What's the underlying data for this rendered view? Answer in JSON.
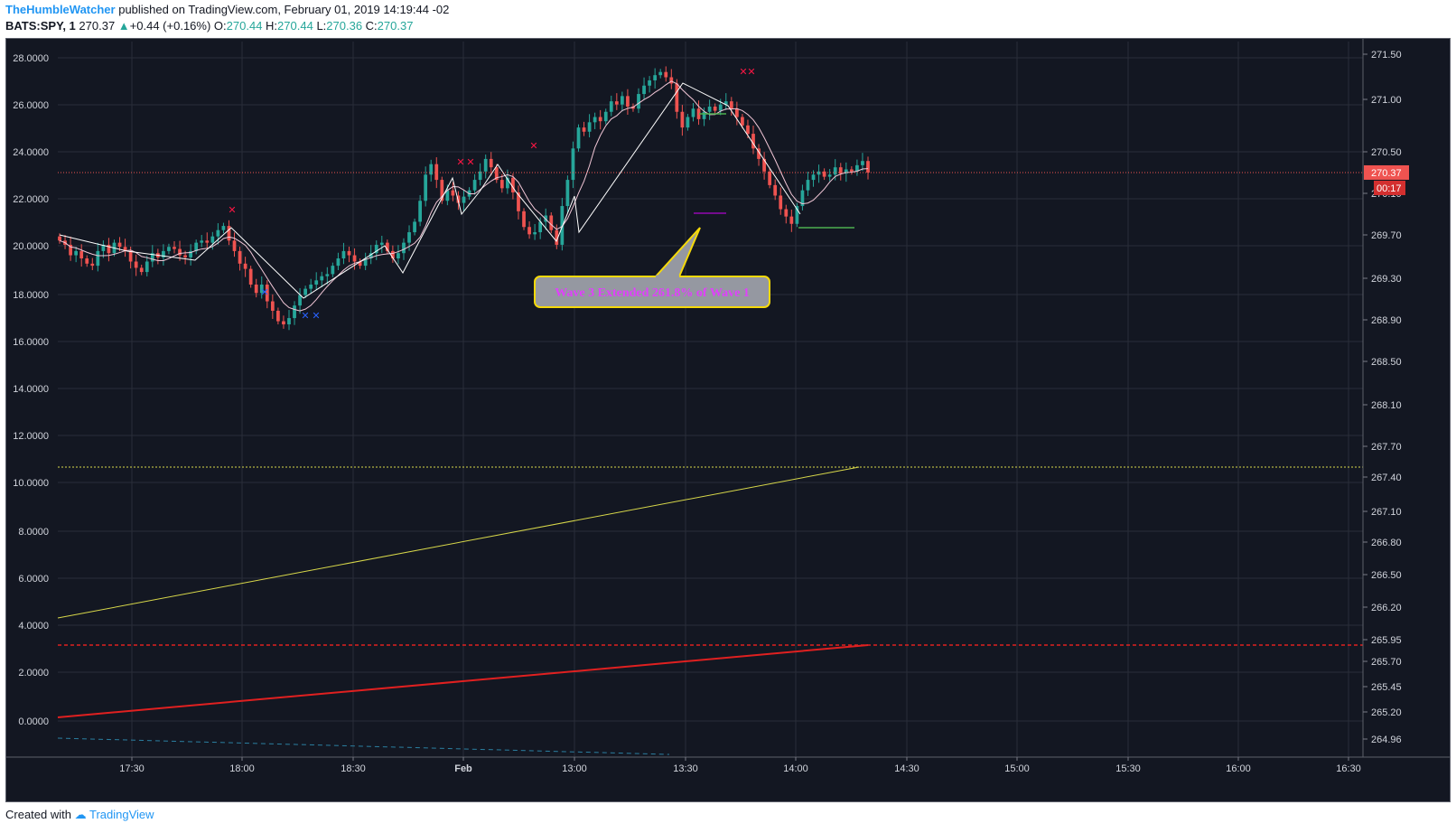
{
  "header": {
    "author": "TheHumbleWatcher",
    "published_text": "published on TradingView.com, February 01, 2019 14:19:44 -02",
    "symbol": "BATS:SPY, 1",
    "last": "270.37",
    "change": "+0.44 (+0.16%)",
    "o_label": "O:",
    "o_value": "270.44",
    "h_label": "H:",
    "h_value": "270.44",
    "l_label": "L:",
    "l_value": "270.36",
    "c_label": "C:",
    "c_value": "270.37"
  },
  "footer": {
    "created_with": "Created with",
    "brand": "TradingView"
  },
  "colors": {
    "background": "#131722",
    "grid": "#2a2e39",
    "up": "#26a69a",
    "down": "#ef5350",
    "price_line": "#ef5350",
    "yellow": "#d8d84a",
    "red_line": "#e02020",
    "blue_marker": "#2962ff",
    "callout_fill": "#9598a1",
    "callout_border": "#f5d90a",
    "callout_text": "#e040fb"
  },
  "chart_data": {
    "type": "candlestick",
    "symbol": "BATS:SPY",
    "interval": "1",
    "x_ticks": [
      "17:30",
      "18:00",
      "18:30",
      "Feb",
      "13:00",
      "13:30",
      "14:00",
      "14:30",
      "15:00",
      "15:30",
      "16:00",
      "16:30"
    ],
    "right_axis": {
      "ticks": [
        "271.50",
        "271.00",
        "270.50",
        "270.10",
        "269.70",
        "269.30",
        "268.90",
        "268.50",
        "268.10",
        "267.70",
        "267.40",
        "267.10",
        "266.80",
        "266.50",
        "266.20",
        "265.95",
        "265.70",
        "265.45",
        "265.20",
        "264.96"
      ],
      "last_price_label": "270.37",
      "countdown_label": "00:17",
      "last_price": 270.37
    },
    "left_axis": {
      "ticks": [
        "28.0000",
        "26.0000",
        "24.0000",
        "22.0000",
        "20.0000",
        "18.0000",
        "16.0000",
        "14.0000",
        "12.0000",
        "10.0000",
        "8.0000",
        "6.0000",
        "4.0000",
        "2.0000",
        "0.0000"
      ],
      "range": [
        -1.0,
        29.0
      ]
    },
    "ohlc_last": {
      "open": 270.44,
      "high": 270.44,
      "low": 270.36,
      "close": 270.37,
      "change": 0.44,
      "change_pct": 0.16
    },
    "closes": [
      269.72,
      269.68,
      269.58,
      269.62,
      269.55,
      269.5,
      269.48,
      269.62,
      269.68,
      269.6,
      269.7,
      269.66,
      269.62,
      269.52,
      269.46,
      269.42,
      269.52,
      269.6,
      269.56,
      269.62,
      269.66,
      269.64,
      269.58,
      269.56,
      269.62,
      269.7,
      269.72,
      269.7,
      269.76,
      269.82,
      269.86,
      269.72,
      269.62,
      269.5,
      269.45,
      269.3,
      269.22,
      269.3,
      269.14,
      269.05,
      268.95,
      268.92,
      268.98,
      269.1,
      269.2,
      269.26,
      269.3,
      269.34,
      269.38,
      269.4,
      269.48,
      269.55,
      269.62,
      269.58,
      269.52,
      269.48,
      269.55,
      269.6,
      269.68,
      269.7,
      269.62,
      269.55,
      269.6,
      269.7,
      269.8,
      269.9,
      270.1,
      270.35,
      270.45,
      270.3,
      270.1,
      270.2,
      270.15,
      270.08,
      270.14,
      270.2,
      270.3,
      270.38,
      270.5,
      270.42,
      270.3,
      270.22,
      270.32,
      270.18,
      270.0,
      269.85,
      269.78,
      269.8,
      269.9,
      269.96,
      269.82,
      269.68,
      270.05,
      270.3,
      270.6,
      270.8,
      270.76,
      270.85,
      270.9,
      270.86,
      270.95,
      271.05,
      271.02,
      271.1,
      271.0,
      270.98,
      271.12,
      271.2,
      271.25,
      271.3,
      271.33,
      271.28,
      271.22,
      270.95,
      270.8,
      270.9,
      270.98,
      270.88,
      270.95,
      271.0,
      270.96,
      271.02,
      271.05,
      270.98,
      270.9,
      270.82,
      270.74,
      270.6,
      270.5,
      270.38,
      270.25,
      270.15,
      270.02,
      269.95,
      269.88,
      270.05,
      270.2,
      270.3,
      270.35,
      270.38,
      270.33,
      270.35,
      270.42,
      270.36,
      270.4,
      270.38,
      270.44,
      270.48,
      270.37
    ],
    "annotations": [
      {
        "type": "callout",
        "text": "Wave 3 Extended 261.8% of Wave 1"
      },
      {
        "type": "horizontal_line",
        "style": "dotted",
        "color": "yellow"
      },
      {
        "type": "horizontal_line",
        "style": "dashed",
        "color": "red"
      },
      {
        "type": "trend_line",
        "color": "yellow"
      },
      {
        "type": "trend_line",
        "color": "red"
      },
      {
        "type": "markers",
        "symbol": "x",
        "color": "red",
        "position": "above highs"
      },
      {
        "type": "markers",
        "symbol": "x",
        "color": "blue",
        "position": "below lows"
      }
    ]
  }
}
